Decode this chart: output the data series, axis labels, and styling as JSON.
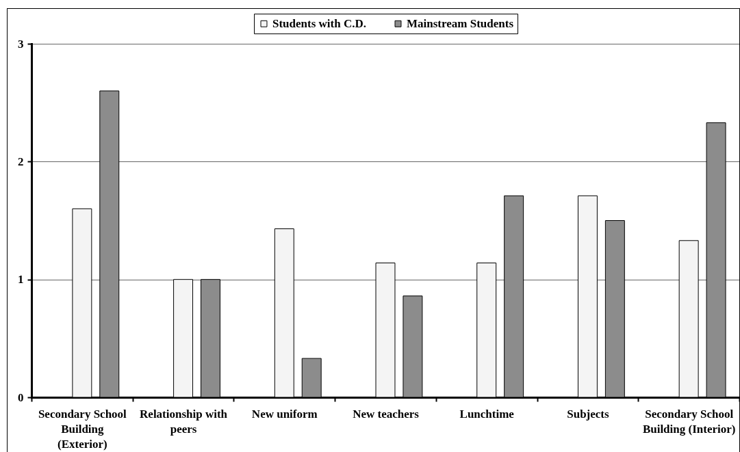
{
  "chart_data": {
    "type": "bar",
    "categories": [
      "Secondary School Building (Exterior)",
      "Relationship with peers",
      "New uniform",
      "New teachers",
      "Lunchtime",
      "Subjects",
      "Secondary School Building (Interior)"
    ],
    "series": [
      {
        "name": "Students with C.D.",
        "color": "#f4f4f4",
        "values": [
          1.6,
          1,
          1.43,
          1.14,
          1.14,
          1.71,
          1.33
        ]
      },
      {
        "name": "Mainstream Students",
        "color": "#8c8c8c",
        "values": [
          2.6,
          1,
          0.33,
          0.86,
          1.71,
          1.5,
          2.33
        ]
      }
    ],
    "ylim": [
      0,
      3
    ],
    "yticks": [
      0,
      1,
      2,
      3
    ],
    "grid": "y",
    "legend": "top"
  }
}
